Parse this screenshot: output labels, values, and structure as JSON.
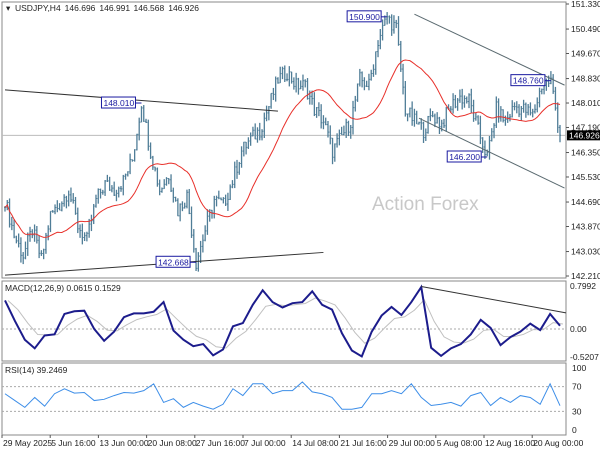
{
  "chart_data": [
    {
      "type": "ohlc",
      "header": {
        "symbol": "USDJPY,H4",
        "open": "146.696",
        "high": "146.991",
        "low": "146.568",
        "close": "146.926"
      },
      "watermark": "Action Forex",
      "ylim": [
        142.21,
        151.33
      ],
      "y_ticks": [
        "151.330",
        "150.490",
        "149.670",
        "148.830",
        "148.010",
        "147.190",
        "146.350",
        "145.530",
        "144.690",
        "143.870",
        "143.030",
        "142.210"
      ],
      "current_price": "146.926",
      "closes": [
        144.76,
        143.58,
        142.9,
        143.75,
        142.75,
        144.25,
        144.6,
        145.1,
        143.9,
        143.4,
        144.76,
        145.3,
        145.1,
        145.4,
        146.1,
        148.01,
        146.4,
        145.1,
        145.6,
        144.4,
        144.9,
        142.67,
        143.75,
        144.76,
        144.6,
        145.4,
        146.4,
        146.8,
        147.1,
        147.9,
        148.8,
        149.05,
        148.6,
        148.6,
        147.8,
        147.4,
        146.4,
        146.9,
        147.4,
        148.8,
        148.6,
        150.1,
        150.9,
        150.5,
        147.8,
        147.4,
        147.1,
        147.6,
        147.3,
        147.9,
        148.2,
        148.1,
        147.1,
        146.2,
        147.8,
        147.4,
        147.9,
        147.8,
        147.6,
        148.6,
        148.76,
        146.93
      ],
      "moving_average_color": "#e8302a",
      "bar_color": "#4f7d97",
      "labels": [
        {
          "text": "148.010",
          "index": 15,
          "price": 148.01,
          "side": "left"
        },
        {
          "text": "150.900",
          "index": 42,
          "price": 150.9,
          "side": "left"
        },
        {
          "text": "148.760",
          "index": 60,
          "price": 148.76,
          "side": "left"
        },
        {
          "text": "146.200",
          "index": 53,
          "price": 146.2,
          "side": "left"
        },
        {
          "text": "142.668",
          "index": 21,
          "price": 142.67,
          "side": "left"
        }
      ],
      "trendlines": [
        {
          "from": [
            0,
            148.45
          ],
          "to": [
            30,
            147.74
          ],
          "color": "#333333"
        },
        {
          "from": [
            0,
            142.24
          ],
          "to": [
            35,
            143.0
          ],
          "color": "#333333"
        },
        {
          "from": [
            45,
            150.99
          ],
          "to": [
            61.5,
            148.61
          ],
          "color": "#5a6a70"
        },
        {
          "from": [
            45.5,
            147.5
          ],
          "to": [
            61.5,
            145.16
          ],
          "color": "#5a6a70"
        }
      ]
    },
    {
      "type": "line",
      "title": "MACD(12,26,9) 0.0615 0.1529",
      "ylim": [
        -0.5207,
        0.7992
      ],
      "y_ticks": [
        "0.7992",
        "0.00",
        "-0.5207"
      ],
      "line_color": "#1c1c8c",
      "values": [
        0.53,
        0.15,
        -0.2,
        -0.36,
        -0.12,
        -0.1,
        0.28,
        0.33,
        0.34,
        0.0,
        -0.22,
        -0.05,
        0.22,
        0.29,
        0.29,
        0.32,
        0.5,
        -0.03,
        -0.2,
        -0.32,
        -0.28,
        -0.49,
        -0.38,
        0.05,
        0.11,
        0.45,
        0.72,
        0.5,
        0.4,
        0.48,
        0.5,
        0.7,
        0.45,
        0.36,
        -0.08,
        -0.4,
        -0.51,
        -0.05,
        0.25,
        0.41,
        0.26,
        0.5,
        0.78,
        -0.35,
        -0.5,
        -0.36,
        -0.28,
        -0.1,
        0.17,
        0.02,
        -0.3,
        -0.15,
        -0.05,
        0.1,
        -0.02,
        0.28,
        0.06
      ],
      "trendline": {
        "from": [
          42,
          0.79
        ],
        "to": [
          57,
          0.3
        ]
      }
    },
    {
      "type": "line",
      "title": "RSI(14) 39.2469",
      "ylim": [
        0,
        100
      ],
      "y_ticks": [
        "100",
        "70",
        "30",
        "0"
      ],
      "levels": [
        70,
        30
      ],
      "line_color": "#3d8ee8",
      "values": [
        60,
        46,
        38,
        51,
        40,
        57,
        68,
        58,
        62,
        46,
        51,
        54,
        62,
        58,
        65,
        73,
        46,
        49,
        38,
        43,
        40,
        32,
        43,
        65,
        57,
        73,
        76,
        57,
        65,
        62,
        79,
        60,
        60,
        51,
        35,
        32,
        38,
        57,
        60,
        62,
        60,
        73,
        54,
        38,
        43,
        43,
        40,
        54,
        62,
        38,
        54,
        43,
        57,
        51,
        43,
        73,
        39.25
      ]
    }
  ],
  "x_ticks": [
    "29 May 2025",
    "5 Jun 16:00",
    "13 Jun 00:00",
    "20 Jun 08:00",
    "27 Jun 16:00",
    "7 Jul 00:00",
    "14 Jul 08:00",
    "21 Jul 16:00",
    "29 Jul 00:00",
    "5 Aug 08:00",
    "12 Aug 16:00",
    "20 Aug 00:00"
  ]
}
